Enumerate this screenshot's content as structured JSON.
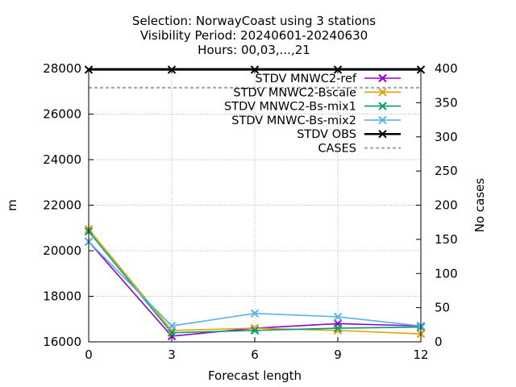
{
  "chart_data": {
    "type": "line",
    "title_lines": [
      "Selection: NorwayCoast using     3 stations",
      "Visibility   Period: 20240601-20240630",
      "Hours: 00,03,...,21"
    ],
    "xlabel": "Forecast length",
    "ylabel": "m",
    "y2label": "No cases",
    "x": [
      0,
      3,
      6,
      9,
      12
    ],
    "xlim": [
      0,
      12
    ],
    "ylim": [
      16000,
      28000
    ],
    "y2lim": [
      0,
      400
    ],
    "xticks": [
      "0",
      "3",
      "6",
      "9",
      "12"
    ],
    "yticks": [
      "16000",
      "18000",
      "20000",
      "22000",
      "24000",
      "26000",
      "28000"
    ],
    "y2ticks": [
      "0",
      "50",
      "100",
      "150",
      "200",
      "250",
      "300",
      "350",
      "400"
    ],
    "grid": true,
    "legend_position": "top-right",
    "series": [
      {
        "name": "STDV MNWC2-ref",
        "color": "#9400d3",
        "marker": "x",
        "axis": "y",
        "values": [
          20400,
          16250,
          16600,
          16800,
          16700
        ]
      },
      {
        "name": "STDV MNWC2-Bscale",
        "color": "#e69f00",
        "marker": "x",
        "axis": "y",
        "values": [
          20950,
          16500,
          16600,
          16500,
          16350
        ]
      },
      {
        "name": "STDV MNWC2-Bs-mix1",
        "color": "#009e73",
        "marker": "x",
        "axis": "y",
        "values": [
          20850,
          16400,
          16500,
          16600,
          16650
        ]
      },
      {
        "name": "STDV MNWC-Bs-mix2",
        "color": "#56b4e9",
        "marker": "x",
        "axis": "y",
        "values": [
          20400,
          16700,
          17250,
          17100,
          16700
        ]
      },
      {
        "name": "STDV OBS",
        "color": "#000000",
        "marker": "x",
        "axis": "y",
        "values": [
          27950,
          27950,
          27950,
          27950,
          27950
        ]
      },
      {
        "name": "CASES",
        "color": "#a0a0a0",
        "marker": "none",
        "dashed": true,
        "axis": "y2",
        "values": [
          372,
          372,
          372,
          372,
          372
        ]
      }
    ]
  }
}
